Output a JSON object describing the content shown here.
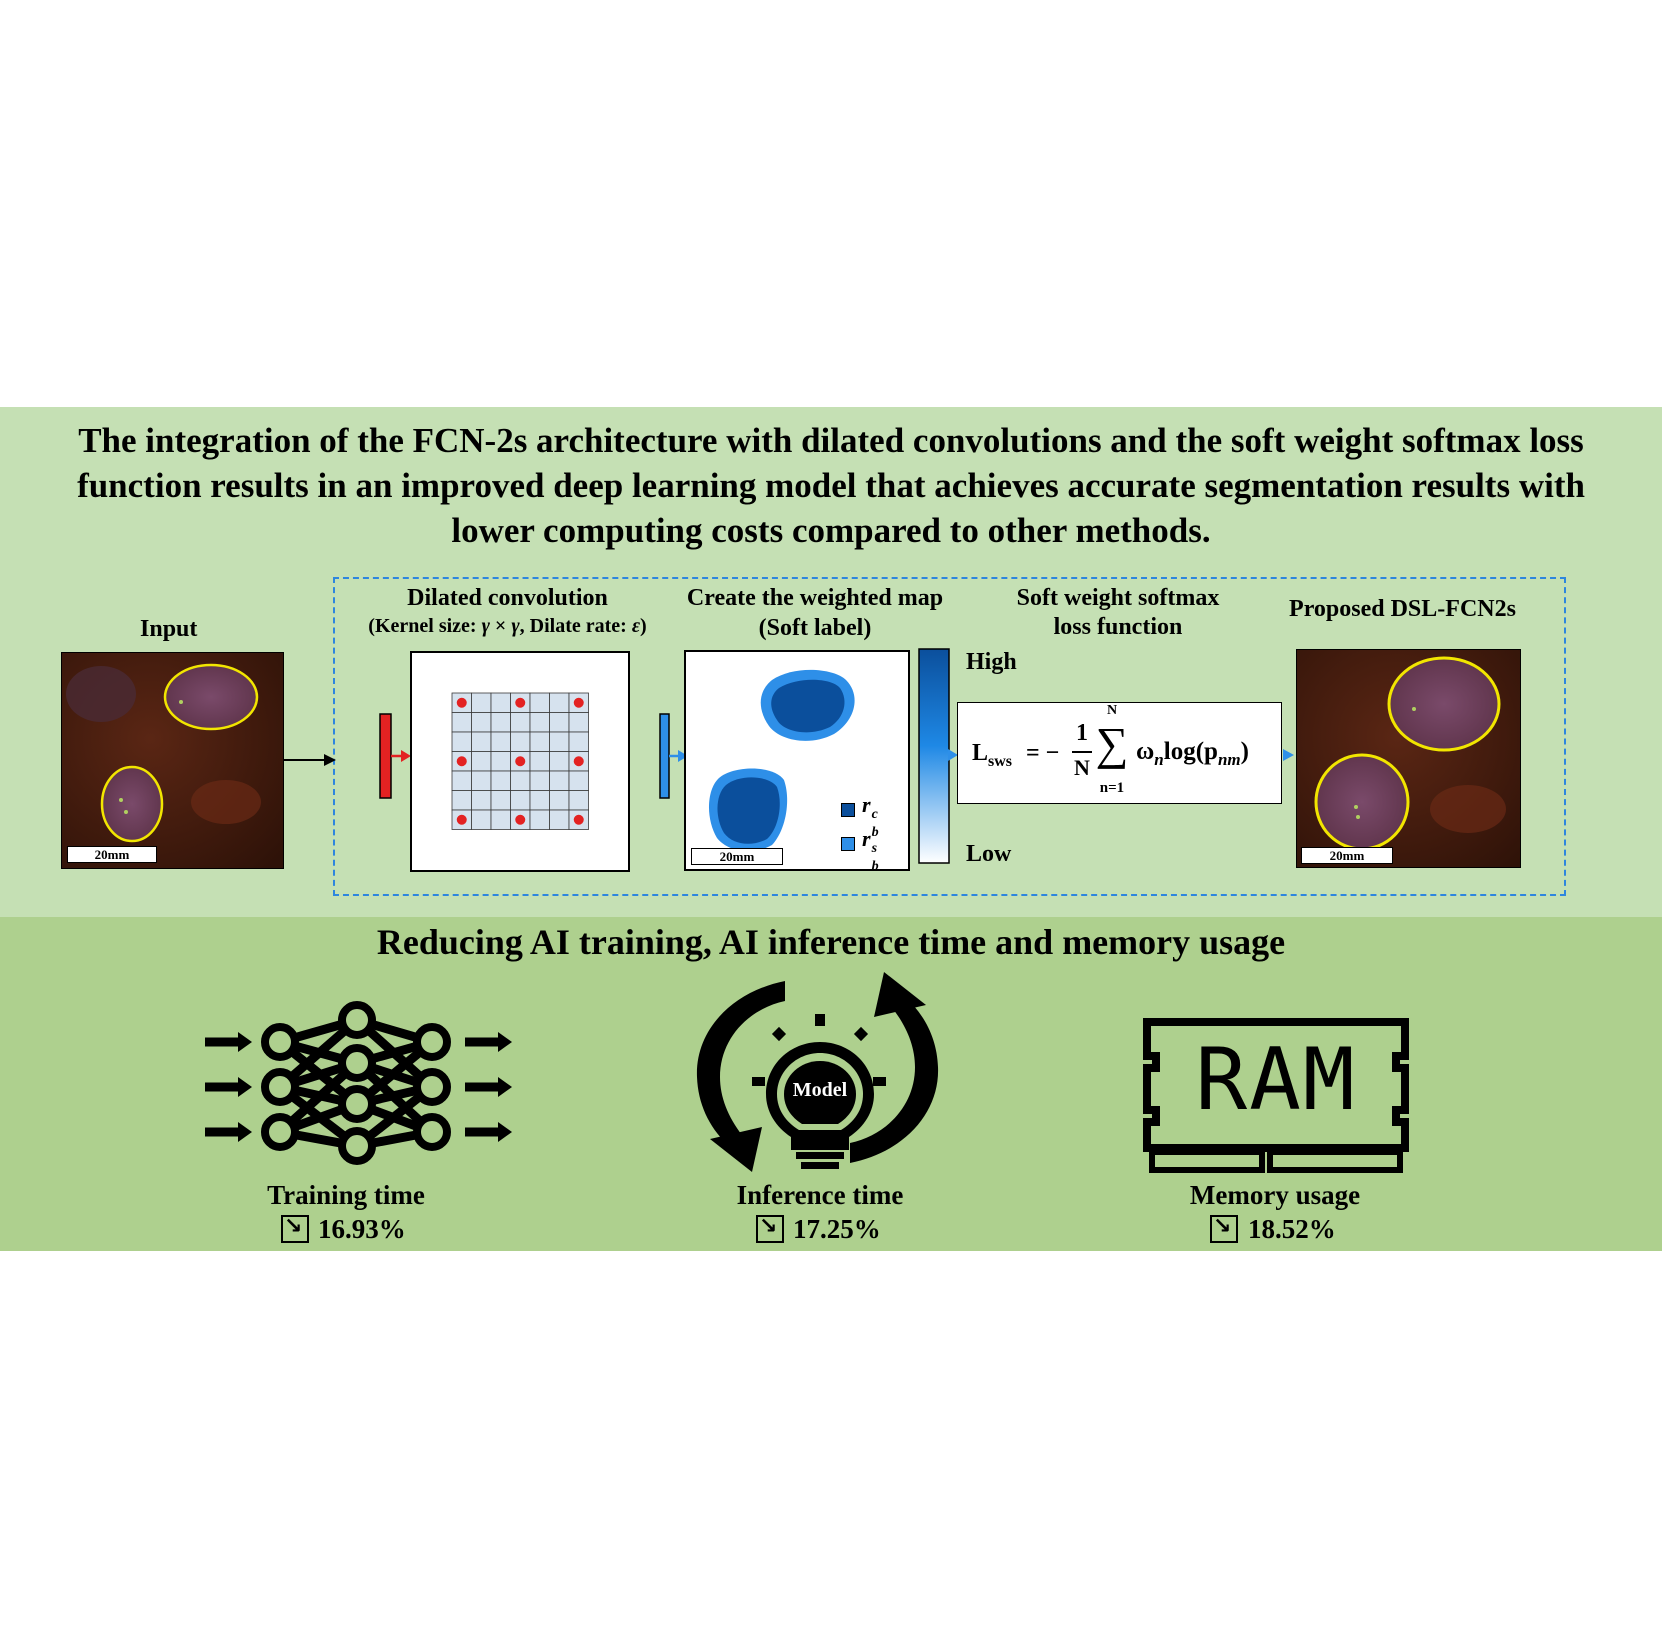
{
  "headline": {
    "line1": "The integration of the FCN-2s architecture with dilated convolutions and the soft weight softmax loss",
    "line2": "function results in an improved deep learning model that achieves accurate segmentation results with",
    "line3": "lower computing costs compared to other methods."
  },
  "pipeline": {
    "input_label": "Input",
    "dilated_title": "Dilated convolution",
    "dilated_sub_a": "(Kernel size: ",
    "dilated_sub_gamma1": "γ",
    "dilated_sub_times": " × ",
    "dilated_sub_gamma2": "γ",
    "dilated_sub_b": ", Dilate rate: ",
    "dilated_sub_eps": "ε",
    "dilated_sub_c": ")",
    "weighted_title": "Create the weighted map",
    "weighted_sub": "(Soft label)",
    "colorbar_high": "High",
    "colorbar_low": "Low",
    "loss_title_1": "Soft weight softmax",
    "loss_title_2": "loss function",
    "output_label": "Proposed DSL-FCN2s",
    "scale_label": "20mm",
    "legend_core_base": "r",
    "legend_core_sub": "b",
    "legend_core_sup": "c",
    "legend_soft_base": "r",
    "legend_soft_sub": "b",
    "legend_soft_sup": "s",
    "formula": {
      "lhs": "L",
      "lhs_sub": "sws",
      "eq": "= −",
      "frac_num": "1",
      "frac_den": "N",
      "sum_top": "N",
      "sum_sym": "∑",
      "sum_bottom": "n=1",
      "omega": "ω",
      "omega_sub": "n",
      "log": "log(p",
      "p_sub": "nm",
      "close": ")"
    }
  },
  "bottom": {
    "title": "Reducing AI training, AI inference time and memory usage",
    "items": [
      {
        "label": "Training time",
        "value": "16.93%",
        "icon": "neural-network-icon"
      },
      {
        "label": "Inference time",
        "value": "17.25%",
        "icon": "lightbulb-cycle-icon",
        "icon_text": "Model"
      },
      {
        "label": "Memory usage",
        "value": "18.52%",
        "icon": "ram-icon",
        "icon_text": "RAM"
      }
    ],
    "trend_glyph": "↘"
  },
  "colors": {
    "band_top": "#c5e0b4",
    "band_bottom": "#aed08e",
    "dashed": "#2e86de",
    "outline_yellow": "#f2e600",
    "soft_label_dark": "#0b4f9c",
    "soft_label_light": "#2e8fe8",
    "kernel_red": "#e32222"
  }
}
